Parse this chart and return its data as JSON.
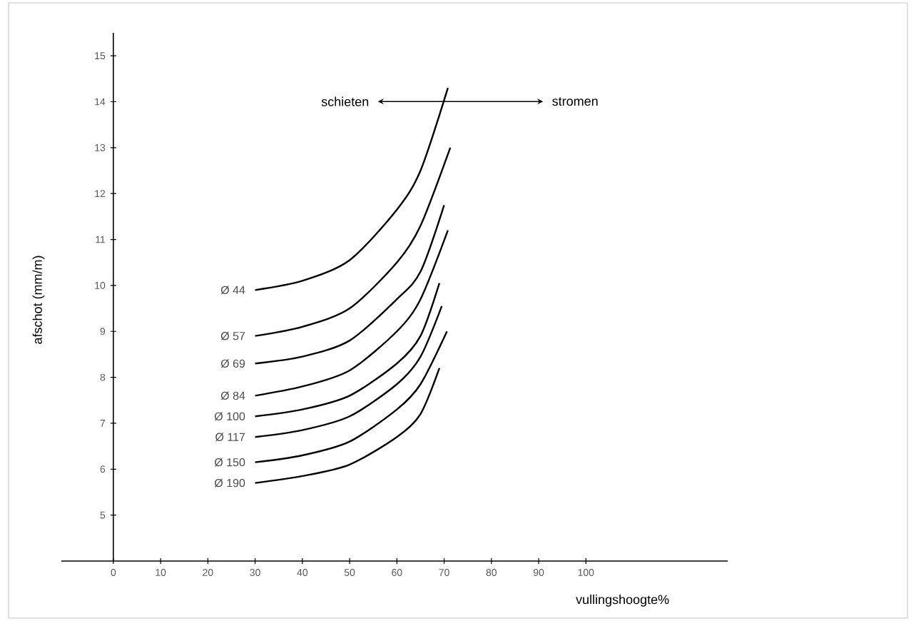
{
  "chart_data": {
    "type": "line",
    "xlabel": "vullingshoogte%",
    "ylabel": "afschot (mm/m)",
    "xlim": [
      -11,
      130
    ],
    "ylim": [
      4,
      15.5
    ],
    "xticks": [
      0,
      10,
      20,
      30,
      40,
      50,
      60,
      70,
      80,
      90,
      100
    ],
    "yticks": [
      5,
      6,
      7,
      8,
      9,
      10,
      11,
      12,
      13,
      14,
      15
    ],
    "marker": "none",
    "line_style": "solid",
    "annotations": [
      "schieten",
      "stromen"
    ],
    "series": [
      {
        "name": "Ø 44",
        "color": "#000000",
        "x": [
          30,
          40,
          50,
          60,
          65,
          70.8
        ],
        "values": [
          9.9,
          10.1,
          10.55,
          11.65,
          12.5,
          14.3
        ]
      },
      {
        "name": "Ø 57",
        "color": "#000000",
        "x": [
          30,
          40,
          50,
          60,
          65,
          71.3
        ],
        "values": [
          8.9,
          9.1,
          9.5,
          10.5,
          11.3,
          13.0
        ]
      },
      {
        "name": "Ø 69",
        "color": "#000000",
        "x": [
          30,
          40,
          50,
          60,
          65,
          70
        ],
        "values": [
          8.3,
          8.45,
          8.8,
          9.7,
          10.3,
          11.75
        ]
      },
      {
        "name": "Ø 84",
        "color": "#000000",
        "x": [
          30,
          40,
          50,
          60,
          65,
          70.8
        ],
        "values": [
          7.6,
          7.8,
          8.15,
          9.0,
          9.7,
          11.2
        ]
      },
      {
        "name": "Ø 100",
        "color": "#000000",
        "x": [
          30,
          40,
          50,
          60,
          65,
          69
        ],
        "values": [
          7.15,
          7.3,
          7.6,
          8.3,
          8.9,
          10.05
        ]
      },
      {
        "name": "Ø 117",
        "color": "#000000",
        "x": [
          30,
          40,
          50,
          60,
          65,
          69.5
        ],
        "values": [
          6.7,
          6.85,
          7.15,
          7.85,
          8.45,
          9.55
        ]
      },
      {
        "name": "Ø 150",
        "color": "#000000",
        "x": [
          30,
          40,
          50,
          60,
          65,
          70.6
        ],
        "values": [
          6.15,
          6.3,
          6.6,
          7.3,
          7.85,
          9.0
        ]
      },
      {
        "name": "Ø 190",
        "color": "#000000",
        "x": [
          30,
          40,
          50,
          60,
          65,
          69
        ],
        "values": [
          5.7,
          5.85,
          6.1,
          6.7,
          7.2,
          8.2
        ]
      }
    ]
  }
}
